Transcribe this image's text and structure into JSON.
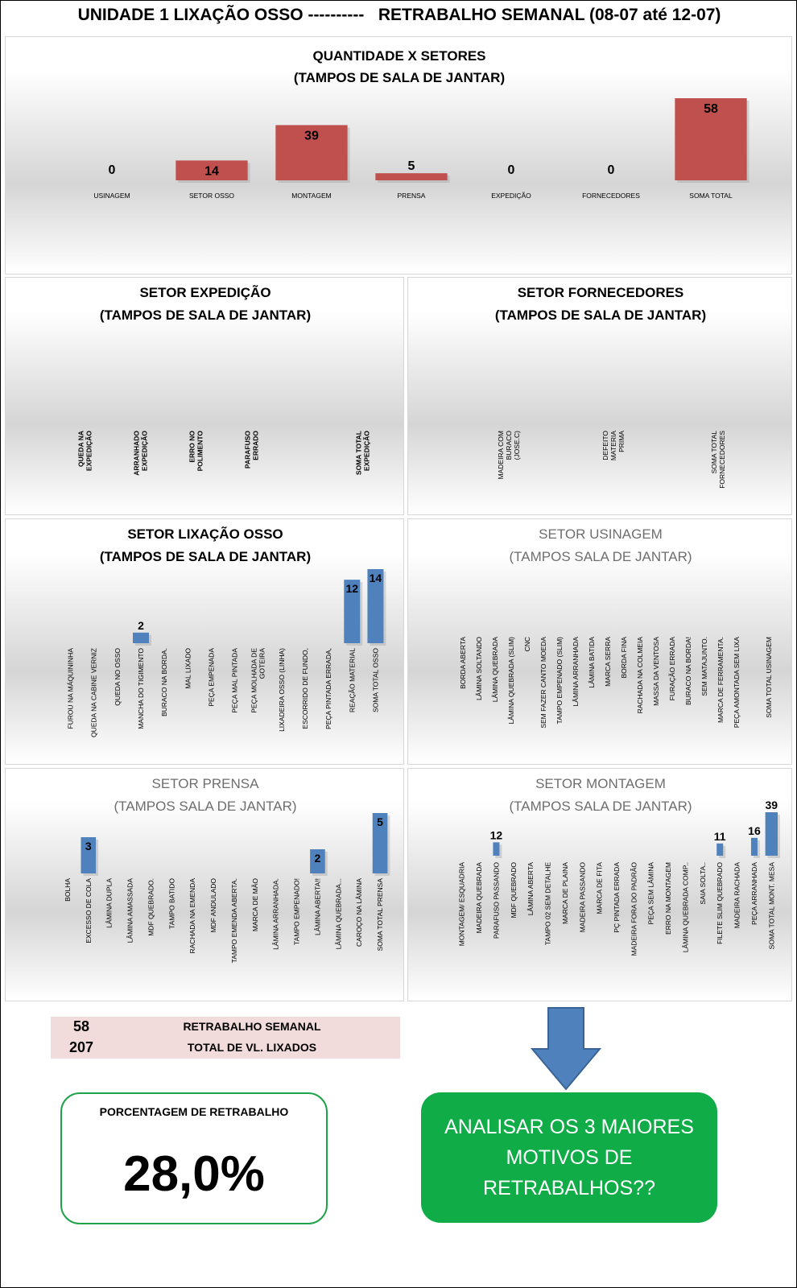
{
  "page": {
    "title": "UNIDADE 1 LIXAÇÃO OSSO ----------   RETRABALHO SEMANAL (08-07 até 12-07)"
  },
  "colors": {
    "red_bar": "#c0504d",
    "blue_bar": "#4f81bd",
    "green_box": "#0fac47",
    "pink_summary": "#f2dcdb",
    "arrow_blue": "#4f81bd"
  },
  "chart_data": [
    {
      "id": "quantidade",
      "type": "bar",
      "title": "QUANTIDADE X SETORES",
      "subtitle": "(TAMPOS DE SALA DE JANTAR)",
      "categories": [
        "USINAGEM",
        "SETOR OSSO",
        "MONTAGEM",
        "PRENSA",
        "EXPEDIÇÃO",
        "FORNECEDORES",
        "SOMA TOTAL"
      ],
      "values": [
        0,
        14,
        39,
        5,
        0,
        0,
        58
      ],
      "data_labels": true,
      "color": "#c0504d",
      "grid": false
    },
    {
      "id": "expedicao",
      "type": "bar",
      "title": "SETOR  EXPEDIÇÃO",
      "subtitle": "(TAMPOS DE SALA DE JANTAR)",
      "categories": [
        "QUEDA NA EXPEDIÇÃO",
        "ARRANHADO EXPEDIÇÃO",
        "ERRO NO POLIMENTO",
        "PARAFUSO ERRADO",
        "",
        "SOMA TOTAL EXPEDIÇÃO"
      ],
      "values": [
        0,
        0,
        0,
        0,
        0,
        0
      ],
      "data_labels": false,
      "grid": false
    },
    {
      "id": "fornecedores",
      "type": "bar",
      "title": "SETOR  FORNECEDORES",
      "subtitle": "(TAMPOS DE SALA DE JANTAR)",
      "categories": [
        "MADEIRA COM BURACO (JOSE.C)",
        "DEFEITO MATERIA PRIMA",
        "SOMA TOTAL FORNECEDORES"
      ],
      "values": [
        0,
        0,
        0
      ],
      "data_labels": false,
      "grid": false
    },
    {
      "id": "lixacao",
      "type": "bar",
      "title": "SETOR  LIXAÇÃO OSSO",
      "subtitle": "(TAMPOS DE SALA DE JANTAR)",
      "categories": [
        "FUROU NA MÁQUININHA",
        "QUEDA  NA CABINE VERNIZ",
        "QUEDA NO OSSO",
        "MANCHA DO TIGIMENTO",
        "BURACO NA BORDA.",
        "MAL LIXADO",
        "PEÇA EMPENADA",
        "PEÇA MAL PINTADA",
        "PEÇA MOLHADA DE GOTEIRA",
        "LIXADEIRA OSSO (LINHA)",
        "ESCORRIDO DE FUNDO,",
        "PEÇA PINTADA ERRADA,",
        "REAÇÃO MATERIAL",
        "SOMA TOTAL OSSO"
      ],
      "values": [
        0,
        0,
        0,
        2,
        0,
        0,
        0,
        0,
        0,
        0,
        0,
        0,
        12,
        14
      ],
      "data_labels": true,
      "color": "#4f81bd",
      "grid": false
    },
    {
      "id": "usinagem",
      "type": "bar",
      "title": "SETOR USINAGEM",
      "subtitle": "(TAMPOS SALA DE JANTAR)",
      "categories": [
        "BORDA ABERTA",
        "LÂMINA SOLTANDO",
        "LÂMINA QUEBRADA",
        "LÂMINA QUEBRADA (SLIM)",
        "CNC",
        "SEM FAZER CANTO MOEDA",
        "TAMPO EMPENADO (SLIM)",
        "LÂMINA ARRANHADA",
        "LÂMINA BATIDA",
        "MARCA SERRA",
        "BORDA FINA",
        "RACHADA NA COLMEIA",
        "MASSA DA VENTOSA",
        "FURAÇÃO ERRADA",
        "BURACO NA BORDA!",
        "SEM MATAJUNTO.",
        "MARCA DE FERRAMENTA.",
        "PEÇA AMONTADA SEM LIXA",
        "",
        "SOMA TOTAL USINAGEM"
      ],
      "values": [
        0,
        0,
        0,
        0,
        0,
        0,
        0,
        0,
        0,
        0,
        0,
        0,
        0,
        0,
        0,
        0,
        0,
        0,
        0,
        0
      ],
      "data_labels": false,
      "grid": false
    },
    {
      "id": "prensa",
      "type": "bar",
      "title": "SETOR PRENSA",
      "subtitle": "(TAMPOS SALA DE JANTAR)",
      "categories": [
        "BOLHA",
        "EXCESSO DE COLA",
        "LÂMINA DUPLA",
        "LÂMINA AMASSADA",
        "MDF QUEBRADO.",
        "TAMPO BATIDO",
        "RACHADA NA EMENDA",
        "MDF ANDULADO",
        "TAMPO EMENDA ABERTA.",
        "MARCA DE MÃO",
        "LÂMINA ARRANHADA.",
        "TAMPO EMPENADO!",
        "LÂMINA ABERTA!!",
        "LÂMINA QUEBRADA...",
        "CAROÇO NA LÂMINA",
        "SOMA TOTAL PRENSA"
      ],
      "values": [
        0,
        3,
        0,
        0,
        0,
        0,
        0,
        0,
        0,
        0,
        0,
        0,
        2,
        0,
        0,
        5
      ],
      "data_labels": true,
      "color": "#4f81bd",
      "grid": false
    },
    {
      "id": "montagem",
      "type": "bar",
      "title": "SETOR MONTAGEM",
      "subtitle": "(TAMPOS SALA DE JANTAR)",
      "categories": [
        "MONTAGEM/ ESQUADRIA",
        "MADEIRA QUEBRADA",
        "PARAFUSO PASSANDO",
        "MDF QUEBRADO",
        "LÂMINA ABERTA",
        "TAMPO 02 SEM DETALHE",
        "MARCA DE PLAINA",
        "MADEIRA PASSANDO",
        "MARCA DE FITA",
        "PÇ PINTADA ERRADA",
        "MADEIRA FORA DO PADRÃO",
        "PEÇA SEM LÂMINA",
        "ERRO NA MONTAGEM",
        "LÂMINA QUEBRADA COMP..",
        "SAIA SOLTA..",
        "FILETE SLIM QUEBRADO",
        "MADEIRA RACHADA",
        "PEÇA ARRANHADA",
        "SOMA TOTAL MONT. MESA"
      ],
      "values": [
        0,
        0,
        12,
        0,
        0,
        0,
        0,
        0,
        0,
        0,
        0,
        0,
        0,
        0,
        0,
        11,
        0,
        16,
        39
      ],
      "data_labels": true,
      "color": "#4f81bd",
      "grid": false
    }
  ],
  "summary": {
    "rows": [
      {
        "value": "58",
        "label": "RETRABALHO SEMANAL"
      },
      {
        "value": "207",
        "label": "TOTAL DE VL. LIXADOS"
      }
    ]
  },
  "percentage": {
    "label": "PORCENTAGEM DE RETRABALHO",
    "value": "28,0%"
  },
  "callout": {
    "text": "ANALISAR OS 3 MAIORES MOTIVOS DE RETRABALHOS??"
  }
}
